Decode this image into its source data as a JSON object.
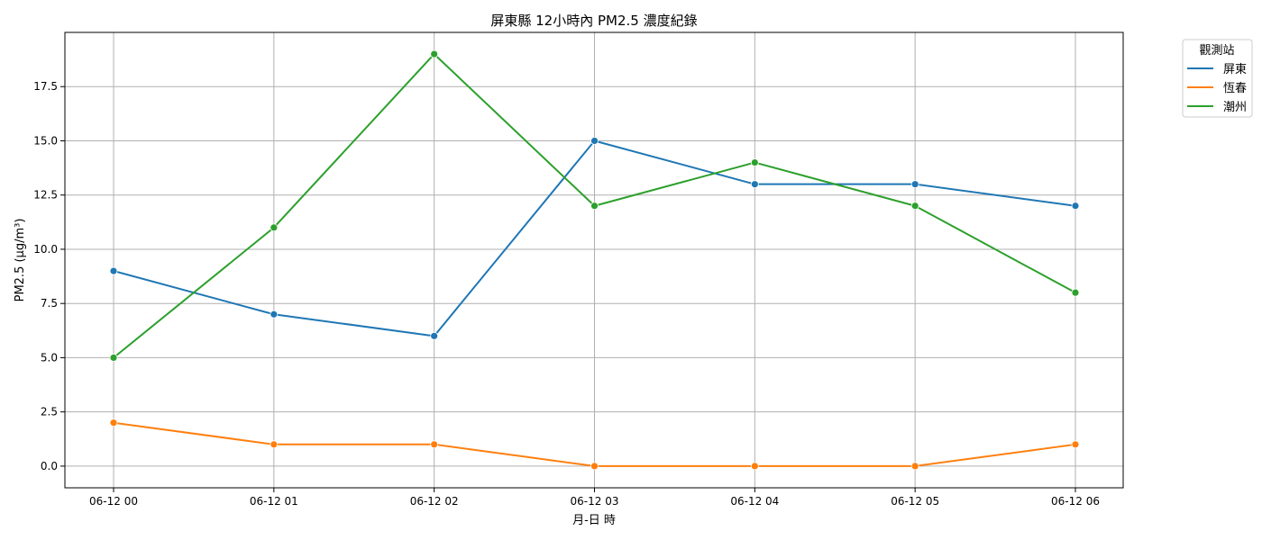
{
  "chart_data": {
    "type": "line",
    "title": "屏東縣 12小時內 PM2.5 濃度紀錄",
    "xlabel": "月-日 時",
    "ylabel": "PM2.5 (μg/m³)",
    "categories": [
      "06-12 00",
      "06-12 01",
      "06-12 02",
      "06-12 03",
      "06-12 04",
      "06-12 05",
      "06-12 06"
    ],
    "ylim": [
      -1,
      20
    ],
    "yticks": [
      0.0,
      2.5,
      5.0,
      7.5,
      10.0,
      12.5,
      15.0,
      17.5
    ],
    "ytick_labels": [
      "0.0",
      "2.5",
      "5.0",
      "7.5",
      "10.0",
      "12.5",
      "15.0",
      "17.5"
    ],
    "grid": true,
    "legend": {
      "title": "觀測站",
      "placement": "outside-top-right"
    },
    "series": [
      {
        "name": "屏東",
        "color": "#1f77b4",
        "values": [
          9,
          7,
          6,
          15,
          13,
          13,
          12
        ]
      },
      {
        "name": "恆春",
        "color": "#ff7f0e",
        "values": [
          2,
          1,
          1,
          0,
          0,
          0,
          1
        ]
      },
      {
        "name": "潮州",
        "color": "#2ca02c",
        "values": [
          5,
          11,
          19,
          12,
          14,
          12,
          8
        ]
      }
    ]
  }
}
